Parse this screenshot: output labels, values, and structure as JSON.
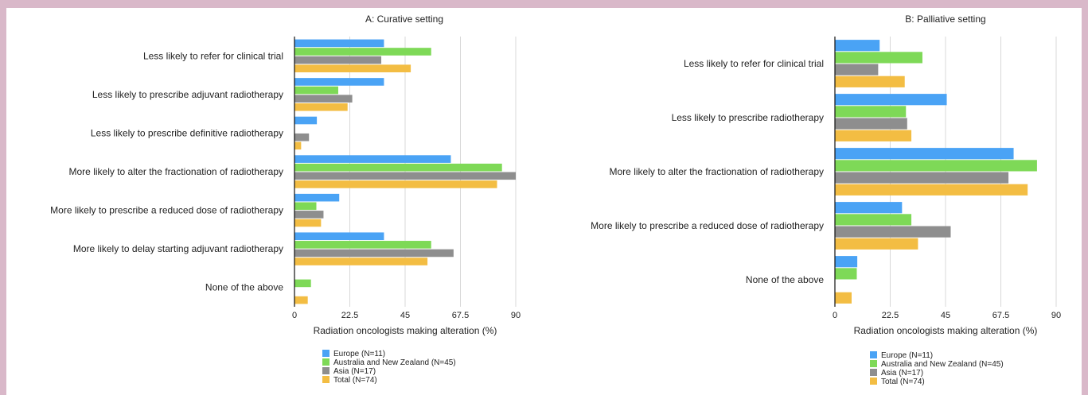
{
  "colors": {
    "Europe (N=11)": "#4aa3f5",
    "Australia and New Zealand (N=45)": "#7ed957",
    "Asia (N=17)": "#8e8e8e",
    "Total (N=74)": "#f3bd43"
  },
  "chart_data": [
    {
      "type": "bar",
      "orientation": "horizontal",
      "title": "A: Curative setting",
      "xlabel": "Radiation oncologists making alteration  (%)",
      "xlim": [
        0,
        90
      ],
      "xticks": [
        "0",
        "22.5",
        "45",
        "67.5",
        "90"
      ],
      "grid": true,
      "legend": "bottom",
      "categories": [
        "Less likely to refer for clinical trial",
        "Less likely to prescribe adjuvant radiotherapy",
        "Less likely to prescribe definitive radiotherapy",
        "More likely to alter the fractionation of radiotherapy",
        "More likely to prescribe a reduced dose of radiotherapy",
        "More likely to delay starting adjuvant radiotherapy",
        "None of the above"
      ],
      "series": [
        {
          "name": "Europe (N=11)",
          "values": [
            36.4,
            36.4,
            9.1,
            63.6,
            18.2,
            36.4,
            0
          ]
        },
        {
          "name": "Australia and New Zealand (N=45)",
          "values": [
            55.6,
            17.8,
            0,
            84.4,
            8.9,
            55.6,
            6.7
          ]
        },
        {
          "name": "Asia (N=17)",
          "values": [
            35.3,
            23.5,
            5.9,
            90.0,
            11.8,
            64.7,
            0
          ]
        },
        {
          "name": "Total (N=74)",
          "values": [
            47.3,
            21.6,
            2.7,
            82.4,
            10.8,
            54.1,
            5.4
          ]
        }
      ]
    },
    {
      "type": "bar",
      "orientation": "horizontal",
      "title": "B: Palliative setting",
      "xlabel": "Radiation oncologists making alteration  (%)",
      "xlim": [
        0,
        90
      ],
      "xticks": [
        "0",
        "22.5",
        "45",
        "67.5",
        "90"
      ],
      "grid": true,
      "legend": "bottom",
      "categories": [
        "Less likely to refer for clinical trial",
        "Less likely to prescribe radiotherapy",
        "More likely to alter the fractionation of radiotherapy",
        "More likely to prescribe a reduced dose of radiotherapy",
        "None of the above"
      ],
      "series": [
        {
          "name": "Europe (N=11)",
          "values": [
            18.2,
            45.5,
            72.7,
            27.3,
            9.1
          ]
        },
        {
          "name": "Australia and New Zealand (N=45)",
          "values": [
            35.6,
            28.9,
            82.2,
            31.1,
            8.9
          ]
        },
        {
          "name": "Asia (N=17)",
          "values": [
            17.6,
            29.4,
            70.6,
            47.1,
            0
          ]
        },
        {
          "name": "Total (N=74)",
          "values": [
            28.4,
            31.1,
            78.4,
            33.8,
            6.8
          ]
        }
      ]
    }
  ]
}
